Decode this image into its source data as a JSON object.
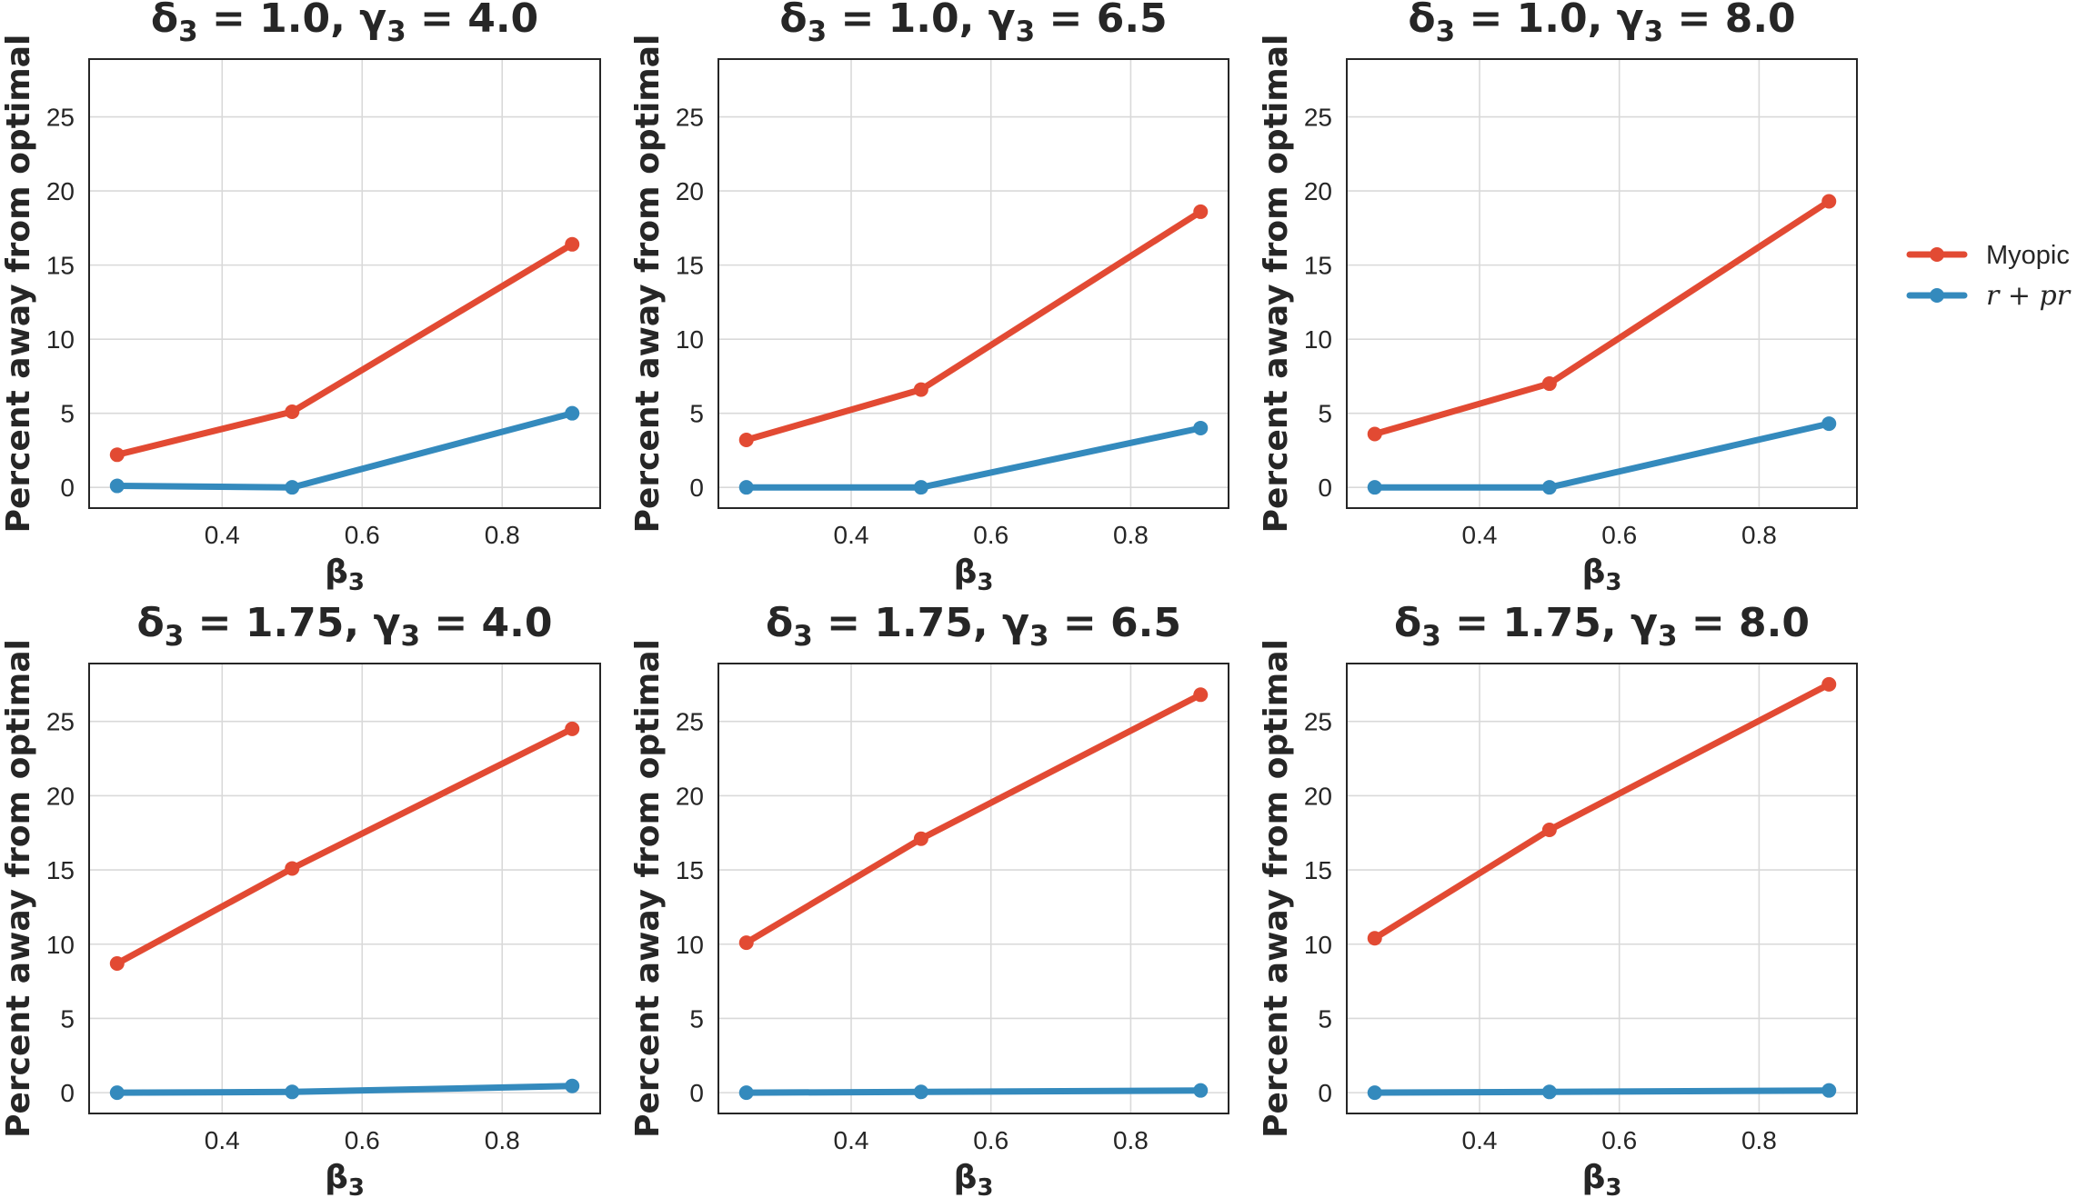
{
  "chart_data": [
    {
      "type": "line",
      "title": "δ₃ = 1.0, γ₃ = 4.0",
      "title_parts": {
        "delta": "δ",
        "delta_val": "1.0",
        "gamma": "γ",
        "gamma_val": "4.0"
      },
      "xlabel": "β₃",
      "ylabel": "Percent away from optimal",
      "x": [
        0.25,
        0.5,
        0.9
      ],
      "xlim": [
        0.21,
        0.94
      ],
      "ylim": [
        -1.4,
        28.9
      ],
      "xticks": [
        "0.4",
        "0.6",
        "0.8"
      ],
      "yticks": [
        "0",
        "5",
        "10",
        "15",
        "20",
        "25"
      ],
      "grid": true,
      "series": [
        {
          "name": "Myopic",
          "values": [
            2.2,
            5.1,
            16.4
          ]
        },
        {
          "name": "r + pr",
          "values": [
            0.1,
            0.0,
            5.0
          ]
        }
      ]
    },
    {
      "type": "line",
      "title": "δ₃ = 1.0, γ₃ = 6.5",
      "title_parts": {
        "delta": "δ",
        "delta_val": "1.0",
        "gamma": "γ",
        "gamma_val": "6.5"
      },
      "xlabel": "β₃",
      "ylabel": "Percent away from optimal",
      "x": [
        0.25,
        0.5,
        0.9
      ],
      "xlim": [
        0.21,
        0.94
      ],
      "ylim": [
        -1.4,
        28.9
      ],
      "xticks": [
        "0.4",
        "0.6",
        "0.8"
      ],
      "yticks": [
        "0",
        "5",
        "10",
        "15",
        "20",
        "25"
      ],
      "grid": true,
      "series": [
        {
          "name": "Myopic",
          "values": [
            3.2,
            6.6,
            18.6
          ]
        },
        {
          "name": "r + pr",
          "values": [
            0.0,
            0.0,
            4.0
          ]
        }
      ]
    },
    {
      "type": "line",
      "title": "δ₃ = 1.0, γ₃ = 8.0",
      "title_parts": {
        "delta": "δ",
        "delta_val": "1.0",
        "gamma": "γ",
        "gamma_val": "8.0"
      },
      "xlabel": "β₃",
      "ylabel": "Percent away from optimal",
      "x": [
        0.25,
        0.5,
        0.9
      ],
      "xlim": [
        0.21,
        0.94
      ],
      "ylim": [
        -1.4,
        28.9
      ],
      "xticks": [
        "0.4",
        "0.6",
        "0.8"
      ],
      "yticks": [
        "0",
        "5",
        "10",
        "15",
        "20",
        "25"
      ],
      "grid": true,
      "series": [
        {
          "name": "Myopic",
          "values": [
            3.6,
            7.0,
            19.3
          ]
        },
        {
          "name": "r + pr",
          "values": [
            0.0,
            0.0,
            4.3
          ]
        }
      ]
    },
    {
      "type": "line",
      "title": "δ₃ = 1.75, γ₃ = 4.0",
      "title_parts": {
        "delta": "δ",
        "delta_val": "1.75",
        "gamma": "γ",
        "gamma_val": "4.0"
      },
      "xlabel": "β₃",
      "ylabel": "Percent away from optimal",
      "x": [
        0.25,
        0.5,
        0.9
      ],
      "xlim": [
        0.21,
        0.94
      ],
      "ylim": [
        -1.4,
        28.9
      ],
      "xticks": [
        "0.4",
        "0.6",
        "0.8"
      ],
      "yticks": [
        "0",
        "5",
        "10",
        "15",
        "20",
        "25"
      ],
      "grid": true,
      "series": [
        {
          "name": "Myopic",
          "values": [
            8.7,
            15.1,
            24.5
          ]
        },
        {
          "name": "r + pr",
          "values": [
            0.0,
            0.05,
            0.45
          ]
        }
      ]
    },
    {
      "type": "line",
      "title": "δ₃ = 1.75, γ₃ = 6.5",
      "title_parts": {
        "delta": "δ",
        "delta_val": "1.75",
        "gamma": "γ",
        "gamma_val": "6.5"
      },
      "xlabel": "β₃",
      "ylabel": "Percent away from optimal",
      "x": [
        0.25,
        0.5,
        0.9
      ],
      "xlim": [
        0.21,
        0.94
      ],
      "ylim": [
        -1.4,
        28.9
      ],
      "xticks": [
        "0.4",
        "0.6",
        "0.8"
      ],
      "yticks": [
        "0",
        "5",
        "10",
        "15",
        "20",
        "25"
      ],
      "grid": true,
      "series": [
        {
          "name": "Myopic",
          "values": [
            10.1,
            17.1,
            26.8
          ]
        },
        {
          "name": "r + pr",
          "values": [
            0.0,
            0.05,
            0.15
          ]
        }
      ]
    },
    {
      "type": "line",
      "title": "δ₃ = 1.75, γ₃ = 8.0",
      "title_parts": {
        "delta": "δ",
        "delta_val": "1.75",
        "gamma": "γ",
        "gamma_val": "8.0"
      },
      "xlabel": "β₃",
      "ylabel": "Percent away from optimal",
      "x": [
        0.25,
        0.5,
        0.9
      ],
      "xlim": [
        0.21,
        0.94
      ],
      "ylim": [
        -1.4,
        28.9
      ],
      "xticks": [
        "0.4",
        "0.6",
        "0.8"
      ],
      "yticks": [
        "0",
        "5",
        "10",
        "15",
        "20",
        "25"
      ],
      "grid": true,
      "series": [
        {
          "name": "Myopic",
          "values": [
            10.4,
            17.7,
            27.5
          ]
        },
        {
          "name": "r + pr",
          "values": [
            0.0,
            0.05,
            0.15
          ]
        }
      ]
    }
  ],
  "legend": {
    "placement": "right",
    "entries": [
      {
        "label": "Myopic",
        "italic": false
      },
      {
        "label": "r + pr",
        "italic": true
      }
    ]
  },
  "colors": {
    "Myopic": "#e24a33",
    "r + pr": "#348abd",
    "grid": "#d9d9d9",
    "spine": "#262626",
    "text": "#262626"
  }
}
